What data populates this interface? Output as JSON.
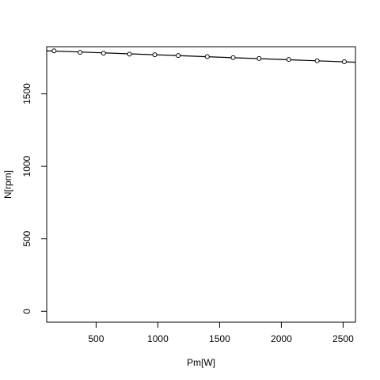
{
  "chart_data": {
    "type": "scatter",
    "title": "",
    "xlabel": "Pm[W]",
    "ylabel": "N[rpm]",
    "xlim": [
      100,
      2600
    ],
    "ylim": [
      -75,
      1825
    ],
    "xticks": [
      500,
      1000,
      1500,
      2000,
      2500
    ],
    "yticks": [
      0,
      500,
      1000,
      1500
    ],
    "grid": false,
    "legend": "none",
    "colors": {
      "points": "#000000",
      "line": "#000000",
      "frame": "#000000"
    },
    "series": [
      {
        "kind": "points",
        "marker": "open-circle",
        "x": [
          160,
          370,
          560,
          770,
          975,
          1165,
          1400,
          1610,
          1820,
          2060,
          2290,
          2510
        ],
        "y": [
          1796,
          1786,
          1780,
          1774,
          1770,
          1764,
          1757,
          1750,
          1744,
          1737,
          1728,
          1721
        ]
      },
      {
        "kind": "line",
        "x": [
          100,
          2600
        ],
        "y": [
          1797,
          1718
        ]
      }
    ]
  }
}
